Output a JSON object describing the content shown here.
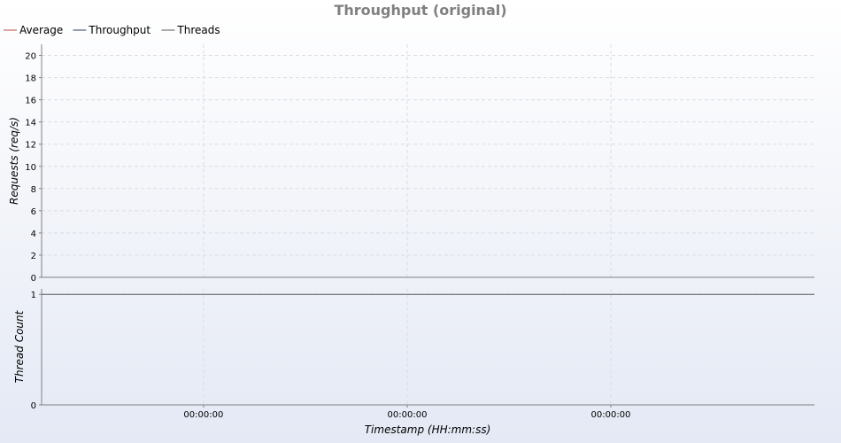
{
  "chart_data": {
    "type": "line",
    "title": "Throughput (original)",
    "legend": {
      "placement": "top-left",
      "entries": [
        {
          "name": "Average",
          "color": "#c04848"
        },
        {
          "name": "Throughput",
          "color": "#2e3a6b"
        },
        {
          "name": "Threads",
          "color": "#5a5a5a"
        }
      ]
    },
    "panels": [
      {
        "id": "requests",
        "ylabel": "Requests (req/s)",
        "ylim": [
          0,
          21
        ],
        "yticks": [
          0,
          2,
          4,
          6,
          8,
          10,
          12,
          14,
          16,
          18,
          20
        ],
        "grid": true,
        "series": []
      },
      {
        "id": "threads",
        "ylabel": "Thread Count",
        "ylim": [
          0,
          1.05
        ],
        "yticks": [
          0,
          1
        ],
        "grid": true,
        "series": [
          {
            "name": "Threads",
            "x": [
              0,
              1
            ],
            "y": [
              1,
              1
            ],
            "color": "#5a5a5a"
          }
        ]
      }
    ],
    "xlabel": "Timestamp (HH:mm:ss)",
    "xlim": [
      0,
      1
    ],
    "xticks": [
      {
        "value": 0.2095,
        "label": "00:00:00"
      },
      {
        "value": 0.4731,
        "label": "00:00:00"
      },
      {
        "value": 0.7365,
        "label": "00:00:00"
      }
    ]
  }
}
